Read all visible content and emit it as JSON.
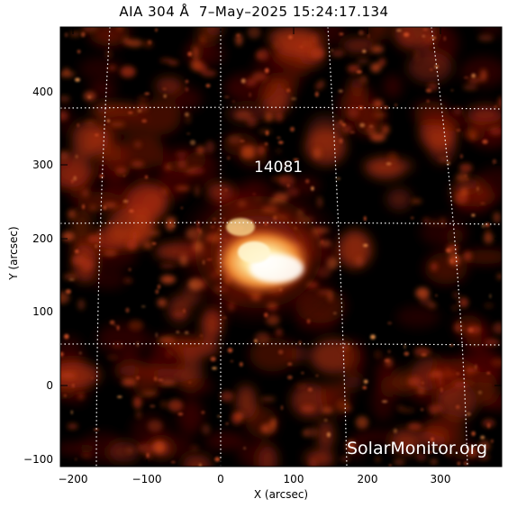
{
  "title": "AIA 304 Å  7–May–2025 15:24:17.134",
  "active_region_label": "14081",
  "watermark": "SolarMonitor.org",
  "colors": {
    "background": "#000000",
    "emission_dim": "#5a0a00",
    "emission_mid": "#b03010",
    "emission_bright": "#ffd070",
    "emission_core": "#ffffff",
    "grid": "#ffffff"
  },
  "x_axis": {
    "label": "X (arcsec)",
    "ticks": [
      "−200",
      "−100",
      "0",
      "100",
      "200",
      "300"
    ],
    "range": [
      -220,
      385
    ]
  },
  "y_axis": {
    "label": "Y (arcsec)",
    "ticks": [
      "−100",
      "0",
      "100",
      "200",
      "300",
      "400"
    ],
    "range": [
      -110,
      490
    ]
  }
}
